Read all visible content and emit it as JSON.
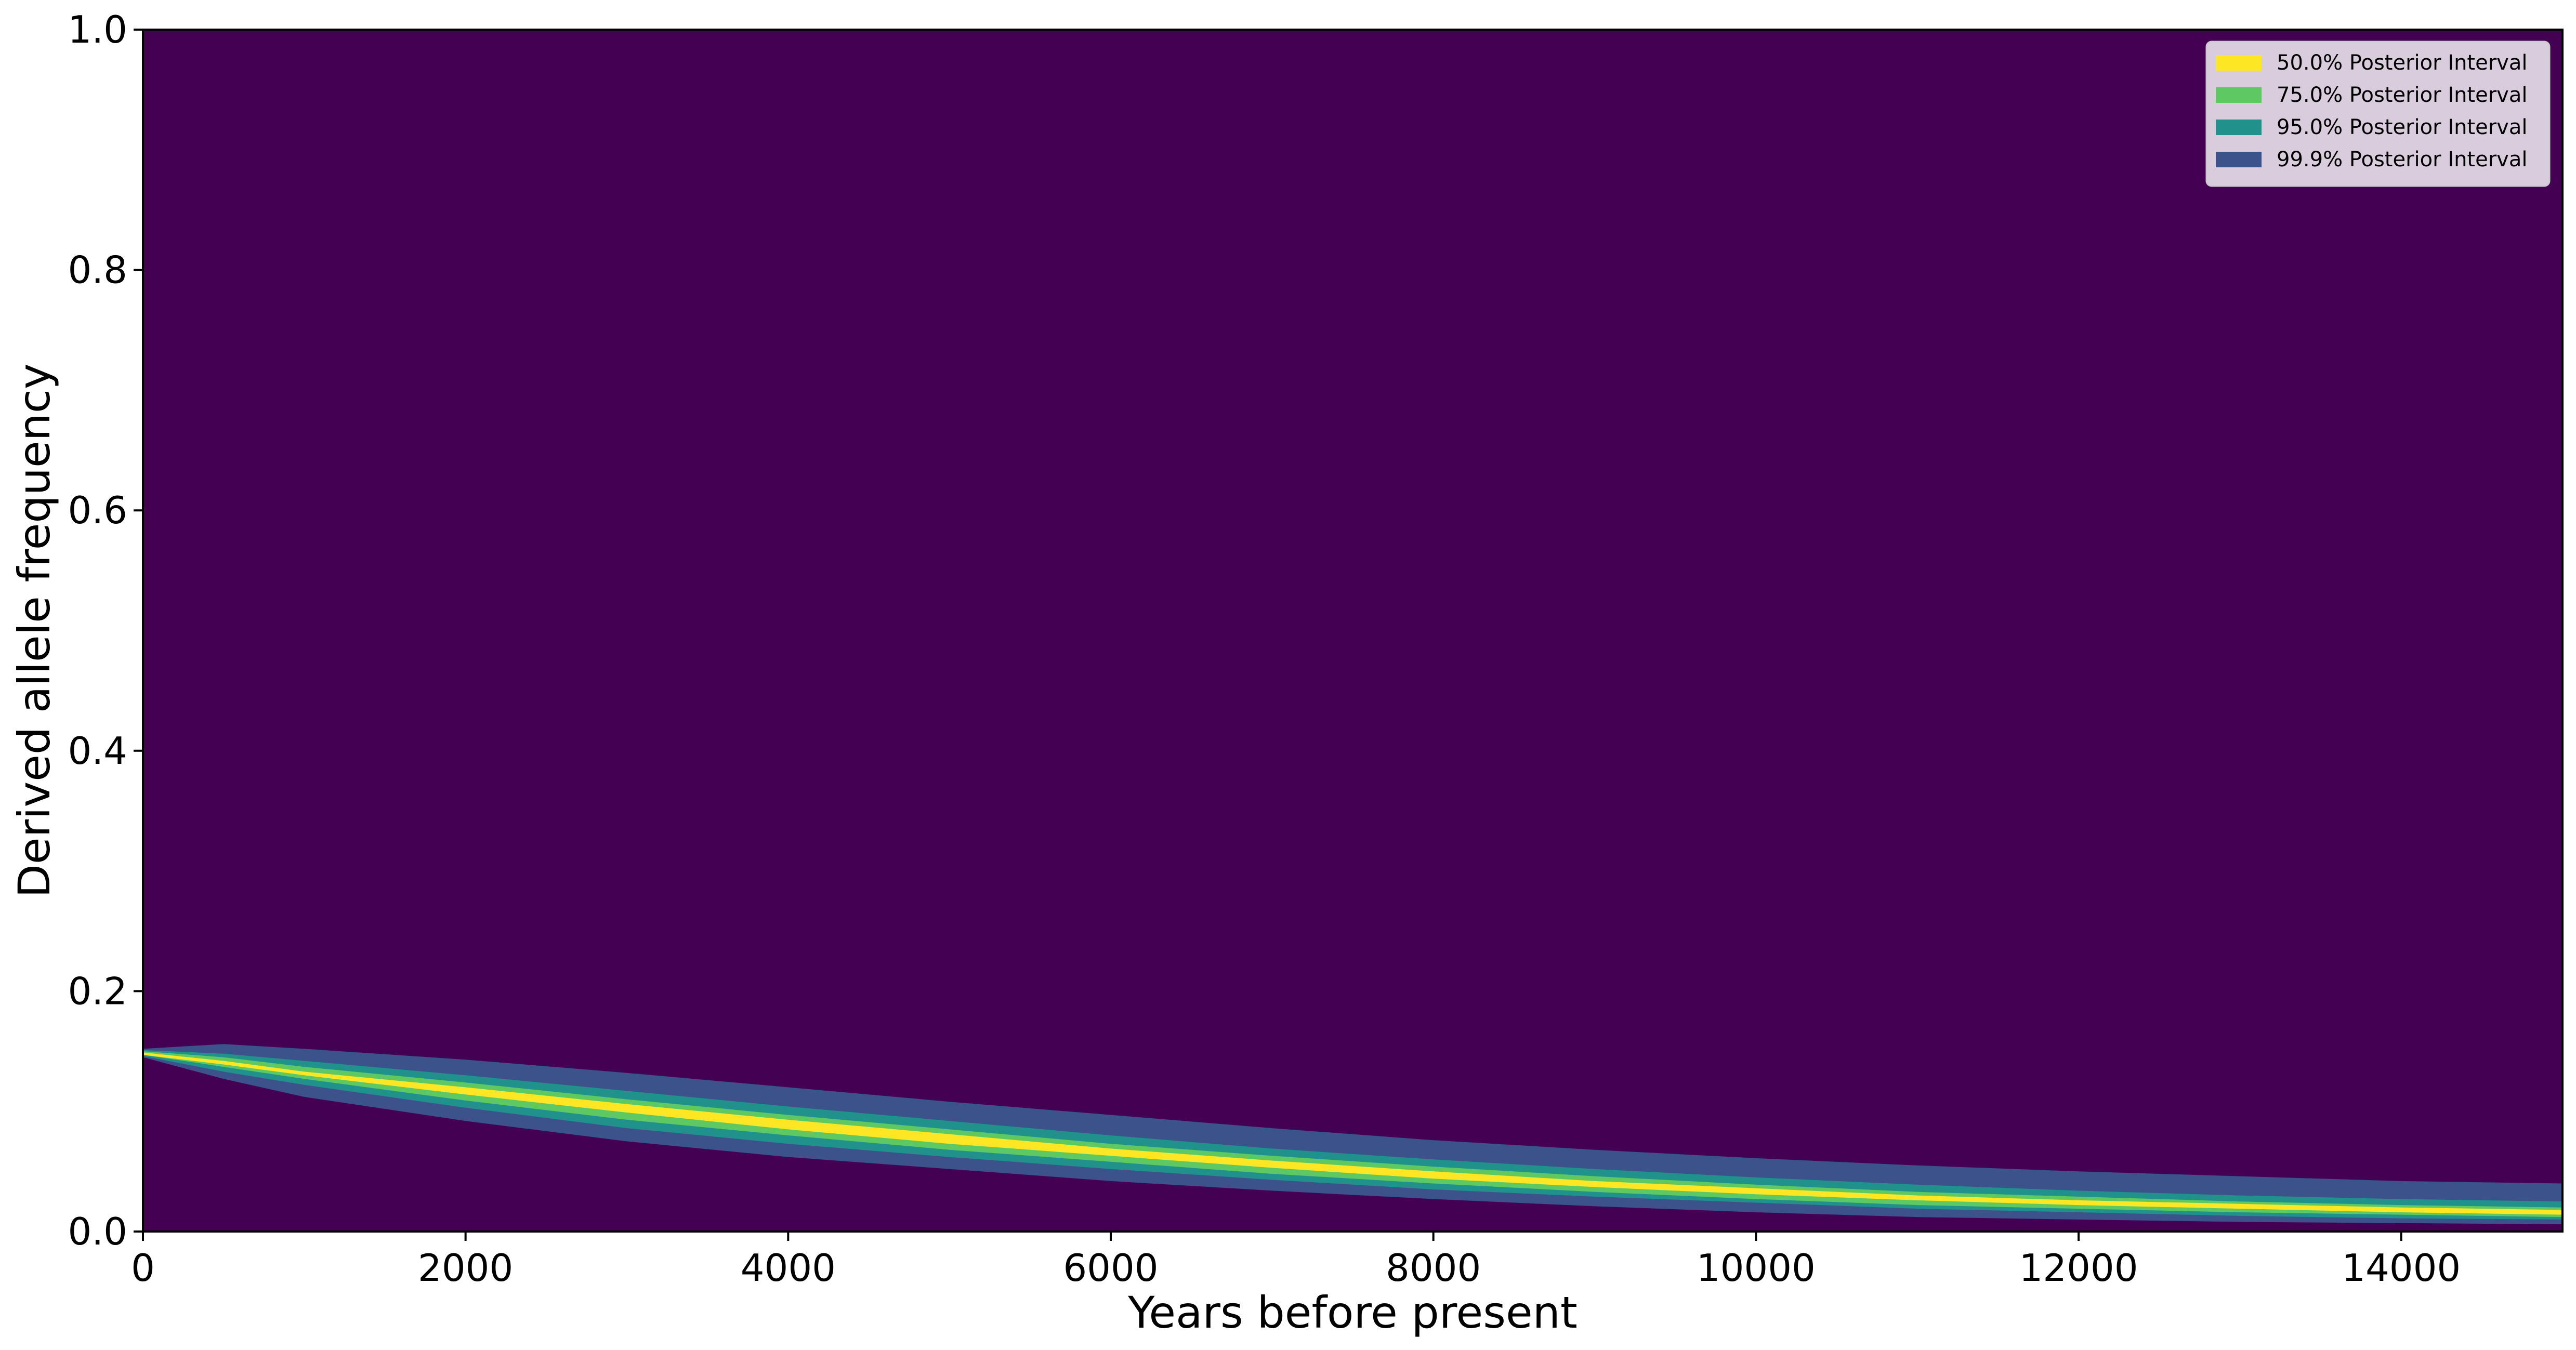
{
  "chart_data": {
    "type": "heatmap",
    "title": "",
    "xlabel": "Years before present",
    "ylabel": "Derived allele frequency",
    "xlim": [
      0,
      15000
    ],
    "ylim": [
      0,
      1.0
    ],
    "x_ticks": [
      "0",
      "2000",
      "4000",
      "6000",
      "8000",
      "10000",
      "12000",
      "14000"
    ],
    "x_tick_values": [
      0,
      2000,
      4000,
      6000,
      8000,
      10000,
      12000,
      14000
    ],
    "y_ticks": [
      "0.0",
      "0.2",
      "0.4",
      "0.6",
      "0.8",
      "1.0"
    ],
    "y_tick_values": [
      0.0,
      0.2,
      0.4,
      0.6,
      0.8,
      1.0
    ],
    "grid": false,
    "legend_position": "top-right",
    "background_color": "#440154",
    "legend": [
      {
        "label": "50.0% Posterior Interval",
        "color": "#fde725"
      },
      {
        "label": "75.0% Posterior Interval",
        "color": "#5ec962"
      },
      {
        "label": "95.0% Posterior Interval",
        "color": "#21918c"
      },
      {
        "label": "99.9% Posterior Interval",
        "color": "#3b528b"
      }
    ],
    "series": [
      {
        "name": "99.9% Posterior Interval",
        "color": "#3b528b",
        "x": [
          0,
          500,
          1000,
          2000,
          3000,
          4000,
          5000,
          6000,
          7000,
          8000,
          9000,
          10000,
          11000,
          12000,
          13000,
          14000,
          15000
        ],
        "upper": [
          0.152,
          0.156,
          0.152,
          0.143,
          0.132,
          0.12,
          0.108,
          0.097,
          0.086,
          0.076,
          0.068,
          0.061,
          0.055,
          0.05,
          0.046,
          0.042,
          0.04
        ],
        "lower": [
          0.145,
          0.127,
          0.112,
          0.092,
          0.075,
          0.062,
          0.052,
          0.042,
          0.034,
          0.027,
          0.021,
          0.016,
          0.012,
          0.01,
          0.008,
          0.007,
          0.006
        ]
      },
      {
        "name": "95.0% Posterior Interval",
        "color": "#21918c",
        "x": [
          0,
          500,
          1000,
          2000,
          3000,
          4000,
          5000,
          6000,
          7000,
          8000,
          9000,
          10000,
          11000,
          12000,
          13000,
          14000,
          15000
        ],
        "upper": [
          0.151,
          0.148,
          0.142,
          0.13,
          0.117,
          0.104,
          0.092,
          0.08,
          0.069,
          0.06,
          0.052,
          0.045,
          0.039,
          0.034,
          0.03,
          0.027,
          0.025
        ],
        "lower": [
          0.146,
          0.133,
          0.122,
          0.103,
          0.086,
          0.073,
          0.062,
          0.052,
          0.043,
          0.035,
          0.029,
          0.024,
          0.019,
          0.016,
          0.013,
          0.011,
          0.01
        ]
      },
      {
        "name": "75.0% Posterior Interval",
        "color": "#5ec962",
        "x": [
          0,
          500,
          1000,
          2000,
          3000,
          4000,
          5000,
          6000,
          7000,
          8000,
          9000,
          10000,
          11000,
          12000,
          13000,
          14000,
          15000
        ],
        "upper": [
          0.15,
          0.145,
          0.137,
          0.124,
          0.11,
          0.097,
          0.085,
          0.073,
          0.063,
          0.054,
          0.046,
          0.039,
          0.033,
          0.029,
          0.025,
          0.022,
          0.02
        ],
        "lower": [
          0.147,
          0.137,
          0.127,
          0.109,
          0.093,
          0.08,
          0.068,
          0.058,
          0.048,
          0.04,
          0.033,
          0.027,
          0.022,
          0.019,
          0.016,
          0.014,
          0.012
        ]
      },
      {
        "name": "50.0% Posterior Interval",
        "color": "#fde725",
        "x": [
          0,
          500,
          1000,
          2000,
          3000,
          4000,
          5000,
          6000,
          7000,
          8000,
          9000,
          10000,
          11000,
          12000,
          13000,
          14000,
          15000
        ],
        "upper": [
          0.149,
          0.142,
          0.133,
          0.12,
          0.106,
          0.093,
          0.081,
          0.069,
          0.059,
          0.05,
          0.042,
          0.036,
          0.03,
          0.026,
          0.023,
          0.02,
          0.018
        ],
        "lower": [
          0.147,
          0.139,
          0.13,
          0.114,
          0.099,
          0.085,
          0.073,
          0.063,
          0.053,
          0.044,
          0.037,
          0.031,
          0.026,
          0.022,
          0.019,
          0.016,
          0.014
        ]
      }
    ]
  }
}
